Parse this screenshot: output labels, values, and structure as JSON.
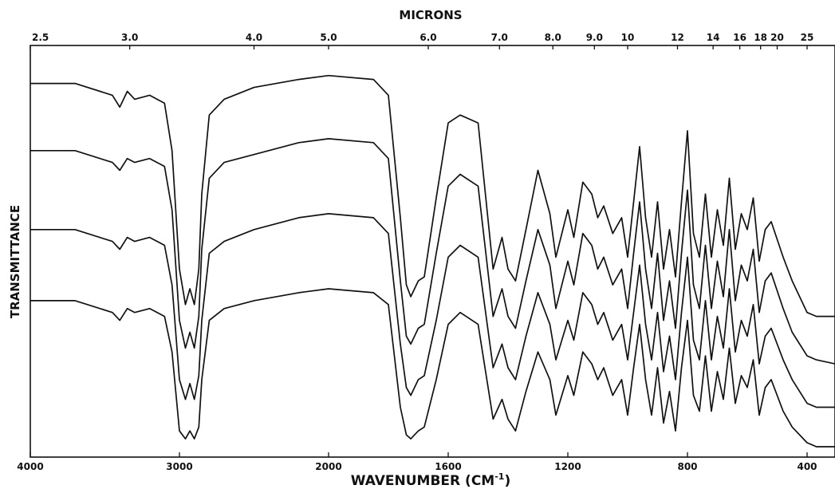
{
  "chart_data": {
    "type": "line",
    "title": "",
    "top_axis_title": "MICRONS",
    "bottom_axis_title": "WAVENUMBER (CM",
    "bottom_axis_title_sup": "-1",
    "bottom_axis_title_close": ")",
    "ylabel": "TRANSMITTANCE",
    "xlim": [
      4000,
      250
    ],
    "x_bottom_ticks": [
      {
        "value": 4000,
        "label": "4000"
      },
      {
        "value": 3000,
        "label": "3000"
      },
      {
        "value": 2000,
        "label": "2000"
      },
      {
        "value": 1600,
        "label": "1600"
      },
      {
        "value": 1200,
        "label": "1200"
      },
      {
        "value": 800,
        "label": "800"
      },
      {
        "value": 400,
        "label": "400"
      }
    ],
    "x_top_ticks": [
      {
        "value": 2.5,
        "label": "2.5"
      },
      {
        "value": 3.0,
        "label": "3.0"
      },
      {
        "value": 4.0,
        "label": "4.0"
      },
      {
        "value": 5.0,
        "label": "5.0"
      },
      {
        "value": 6.0,
        "label": "6.0"
      },
      {
        "value": 7.0,
        "label": "7.0"
      },
      {
        "value": 8.0,
        "label": "8.0"
      },
      {
        "value": 9.0,
        "label": "9.0"
      },
      {
        "value": 10,
        "label": "10"
      },
      {
        "value": 12,
        "label": "12"
      },
      {
        "value": 14,
        "label": "14"
      },
      {
        "value": 16,
        "label": "16"
      },
      {
        "value": 18,
        "label": "18"
      },
      {
        "value": 20,
        "label": "20"
      },
      {
        "value": 25,
        "label": "25"
      }
    ],
    "y_range": [
      0,
      100
    ],
    "grid": false,
    "legend": "none",
    "series": [
      {
        "points": [
          [
            4000,
            92
          ],
          [
            3700,
            92
          ],
          [
            3450,
            89
          ],
          [
            3400,
            86
          ],
          [
            3350,
            90
          ],
          [
            3300,
            88
          ],
          [
            3200,
            89
          ],
          [
            3100,
            87
          ],
          [
            3050,
            75
          ],
          [
            3000,
            45
          ],
          [
            2960,
            36
          ],
          [
            2930,
            40
          ],
          [
            2900,
            36
          ],
          [
            2870,
            45
          ],
          [
            2850,
            64
          ],
          [
            2800,
            84
          ],
          [
            2700,
            88
          ],
          [
            2500,
            91
          ],
          [
            2200,
            93
          ],
          [
            2000,
            94
          ],
          [
            1850,
            93
          ],
          [
            1800,
            89
          ],
          [
            1760,
            58
          ],
          [
            1740,
            41
          ],
          [
            1725,
            38
          ],
          [
            1700,
            42
          ],
          [
            1680,
            43
          ],
          [
            1640,
            63
          ],
          [
            1600,
            82
          ],
          [
            1560,
            84
          ],
          [
            1500,
            82
          ],
          [
            1450,
            45
          ],
          [
            1420,
            53
          ],
          [
            1400,
            45
          ],
          [
            1375,
            42
          ],
          [
            1340,
            55
          ],
          [
            1300,
            70
          ],
          [
            1260,
            59
          ],
          [
            1240,
            48
          ],
          [
            1200,
            60
          ],
          [
            1180,
            53
          ],
          [
            1150,
            67
          ],
          [
            1120,
            64
          ],
          [
            1100,
            58
          ],
          [
            1080,
            61
          ],
          [
            1050,
            54
          ],
          [
            1020,
            58
          ],
          [
            1000,
            48
          ],
          [
            980,
            62
          ],
          [
            960,
            76
          ],
          [
            940,
            58
          ],
          [
            920,
            48
          ],
          [
            900,
            62
          ],
          [
            880,
            45
          ],
          [
            860,
            55
          ],
          [
            840,
            43
          ],
          [
            820,
            62
          ],
          [
            800,
            80
          ],
          [
            780,
            54
          ],
          [
            760,
            48
          ],
          [
            740,
            64
          ],
          [
            720,
            48
          ],
          [
            700,
            60
          ],
          [
            680,
            51
          ],
          [
            660,
            68
          ],
          [
            640,
            50
          ],
          [
            620,
            59
          ],
          [
            600,
            55
          ],
          [
            580,
            63
          ],
          [
            560,
            47
          ],
          [
            540,
            55
          ],
          [
            520,
            57
          ],
          [
            480,
            48
          ],
          [
            450,
            42
          ],
          [
            400,
            34
          ],
          [
            350,
            33
          ],
          [
            250,
            33
          ]
        ]
      },
      {
        "points": [
          [
            4000,
            75
          ],
          [
            3700,
            75
          ],
          [
            3450,
            72
          ],
          [
            3400,
            70
          ],
          [
            3350,
            73
          ],
          [
            3300,
            72
          ],
          [
            3200,
            73
          ],
          [
            3100,
            71
          ],
          [
            3050,
            60
          ],
          [
            3000,
            32
          ],
          [
            2960,
            25
          ],
          [
            2930,
            29
          ],
          [
            2900,
            25
          ],
          [
            2870,
            33
          ],
          [
            2850,
            50
          ],
          [
            2800,
            68
          ],
          [
            2700,
            72
          ],
          [
            2500,
            74
          ],
          [
            2200,
            77
          ],
          [
            2000,
            78
          ],
          [
            1850,
            77
          ],
          [
            1800,
            73
          ],
          [
            1760,
            42
          ],
          [
            1740,
            28
          ],
          [
            1725,
            26
          ],
          [
            1700,
            30
          ],
          [
            1680,
            31
          ],
          [
            1640,
            49
          ],
          [
            1600,
            66
          ],
          [
            1560,
            69
          ],
          [
            1500,
            66
          ],
          [
            1450,
            33
          ],
          [
            1420,
            40
          ],
          [
            1400,
            33
          ],
          [
            1375,
            30
          ],
          [
            1340,
            42
          ],
          [
            1300,
            55
          ],
          [
            1260,
            46
          ],
          [
            1240,
            35
          ],
          [
            1200,
            47
          ],
          [
            1180,
            41
          ],
          [
            1150,
            54
          ],
          [
            1120,
            51
          ],
          [
            1100,
            45
          ],
          [
            1080,
            48
          ],
          [
            1050,
            41
          ],
          [
            1020,
            45
          ],
          [
            1000,
            35
          ],
          [
            980,
            49
          ],
          [
            960,
            62
          ],
          [
            940,
            45
          ],
          [
            920,
            35
          ],
          [
            900,
            49
          ],
          [
            880,
            32
          ],
          [
            860,
            42
          ],
          [
            840,
            30
          ],
          [
            820,
            49
          ],
          [
            800,
            65
          ],
          [
            780,
            41
          ],
          [
            760,
            35
          ],
          [
            740,
            51
          ],
          [
            720,
            35
          ],
          [
            700,
            47
          ],
          [
            680,
            38
          ],
          [
            660,
            55
          ],
          [
            640,
            37
          ],
          [
            620,
            46
          ],
          [
            600,
            42
          ],
          [
            580,
            50
          ],
          [
            560,
            34
          ],
          [
            540,
            42
          ],
          [
            520,
            44
          ],
          [
            480,
            35
          ],
          [
            450,
            29
          ],
          [
            400,
            23
          ],
          [
            350,
            22
          ],
          [
            250,
            21
          ]
        ]
      },
      {
        "points": [
          [
            4000,
            55
          ],
          [
            3700,
            55
          ],
          [
            3450,
            52
          ],
          [
            3400,
            50
          ],
          [
            3350,
            53
          ],
          [
            3300,
            52
          ],
          [
            3200,
            53
          ],
          [
            3100,
            51
          ],
          [
            3050,
            41
          ],
          [
            3000,
            17
          ],
          [
            2960,
            12
          ],
          [
            2930,
            16
          ],
          [
            2900,
            12
          ],
          [
            2870,
            18
          ],
          [
            2850,
            32
          ],
          [
            2800,
            49
          ],
          [
            2700,
            52
          ],
          [
            2500,
            55
          ],
          [
            2200,
            58
          ],
          [
            2000,
            59
          ],
          [
            1850,
            58
          ],
          [
            1800,
            54
          ],
          [
            1760,
            26
          ],
          [
            1740,
            15
          ],
          [
            1725,
            13
          ],
          [
            1700,
            17
          ],
          [
            1680,
            18
          ],
          [
            1640,
            32
          ],
          [
            1600,
            48
          ],
          [
            1560,
            51
          ],
          [
            1500,
            48
          ],
          [
            1450,
            20
          ],
          [
            1420,
            26
          ],
          [
            1400,
            20
          ],
          [
            1375,
            17
          ],
          [
            1340,
            28
          ],
          [
            1300,
            39
          ],
          [
            1260,
            31
          ],
          [
            1240,
            22
          ],
          [
            1200,
            32
          ],
          [
            1180,
            27
          ],
          [
            1150,
            39
          ],
          [
            1120,
            36
          ],
          [
            1100,
            31
          ],
          [
            1080,
            34
          ],
          [
            1050,
            27
          ],
          [
            1020,
            31
          ],
          [
            1000,
            22
          ],
          [
            980,
            34
          ],
          [
            960,
            46
          ],
          [
            940,
            31
          ],
          [
            920,
            22
          ],
          [
            900,
            34
          ],
          [
            880,
            19
          ],
          [
            860,
            28
          ],
          [
            840,
            17
          ],
          [
            820,
            34
          ],
          [
            800,
            48
          ],
          [
            780,
            27
          ],
          [
            760,
            22
          ],
          [
            740,
            37
          ],
          [
            720,
            22
          ],
          [
            700,
            33
          ],
          [
            680,
            25
          ],
          [
            660,
            40
          ],
          [
            640,
            24
          ],
          [
            620,
            32
          ],
          [
            600,
            28
          ],
          [
            580,
            36
          ],
          [
            560,
            21
          ],
          [
            540,
            28
          ],
          [
            520,
            30
          ],
          [
            480,
            22
          ],
          [
            450,
            17
          ],
          [
            400,
            11
          ],
          [
            350,
            10
          ],
          [
            250,
            10
          ]
        ]
      },
      {
        "points": [
          [
            4000,
            37
          ],
          [
            3700,
            37
          ],
          [
            3450,
            34
          ],
          [
            3400,
            32
          ],
          [
            3350,
            35
          ],
          [
            3300,
            34
          ],
          [
            3200,
            35
          ],
          [
            3100,
            33
          ],
          [
            3050,
            24
          ],
          [
            3000,
            4
          ],
          [
            2960,
            2
          ],
          [
            2930,
            4
          ],
          [
            2900,
            2
          ],
          [
            2870,
            5
          ],
          [
            2850,
            17
          ],
          [
            2800,
            32
          ],
          [
            2700,
            35
          ],
          [
            2500,
            37
          ],
          [
            2200,
            39
          ],
          [
            2000,
            40
          ],
          [
            1850,
            39
          ],
          [
            1800,
            36
          ],
          [
            1760,
            10
          ],
          [
            1740,
            3
          ],
          [
            1725,
            2
          ],
          [
            1700,
            4
          ],
          [
            1680,
            5
          ],
          [
            1640,
            17
          ],
          [
            1600,
            31
          ],
          [
            1560,
            34
          ],
          [
            1500,
            31
          ],
          [
            1450,
            7
          ],
          [
            1420,
            12
          ],
          [
            1400,
            7
          ],
          [
            1375,
            4
          ],
          [
            1340,
            14
          ],
          [
            1300,
            24
          ],
          [
            1260,
            17
          ],
          [
            1240,
            8
          ],
          [
            1200,
            18
          ],
          [
            1180,
            13
          ],
          [
            1150,
            24
          ],
          [
            1120,
            21
          ],
          [
            1100,
            17
          ],
          [
            1080,
            20
          ],
          [
            1050,
            13
          ],
          [
            1020,
            17
          ],
          [
            1000,
            8
          ],
          [
            980,
            20
          ],
          [
            960,
            31
          ],
          [
            940,
            17
          ],
          [
            920,
            8
          ],
          [
            900,
            20
          ],
          [
            880,
            6
          ],
          [
            860,
            14
          ],
          [
            840,
            4
          ],
          [
            820,
            20
          ],
          [
            800,
            32
          ],
          [
            780,
            13
          ],
          [
            760,
            9
          ],
          [
            740,
            23
          ],
          [
            720,
            9
          ],
          [
            700,
            19
          ],
          [
            680,
            12
          ],
          [
            660,
            25
          ],
          [
            640,
            11
          ],
          [
            620,
            18
          ],
          [
            600,
            15
          ],
          [
            580,
            22
          ],
          [
            560,
            8
          ],
          [
            540,
            15
          ],
          [
            520,
            17
          ],
          [
            480,
            9
          ],
          [
            450,
            5
          ],
          [
            400,
            1
          ],
          [
            350,
            0
          ],
          [
            250,
            0
          ]
        ]
      }
    ]
  }
}
